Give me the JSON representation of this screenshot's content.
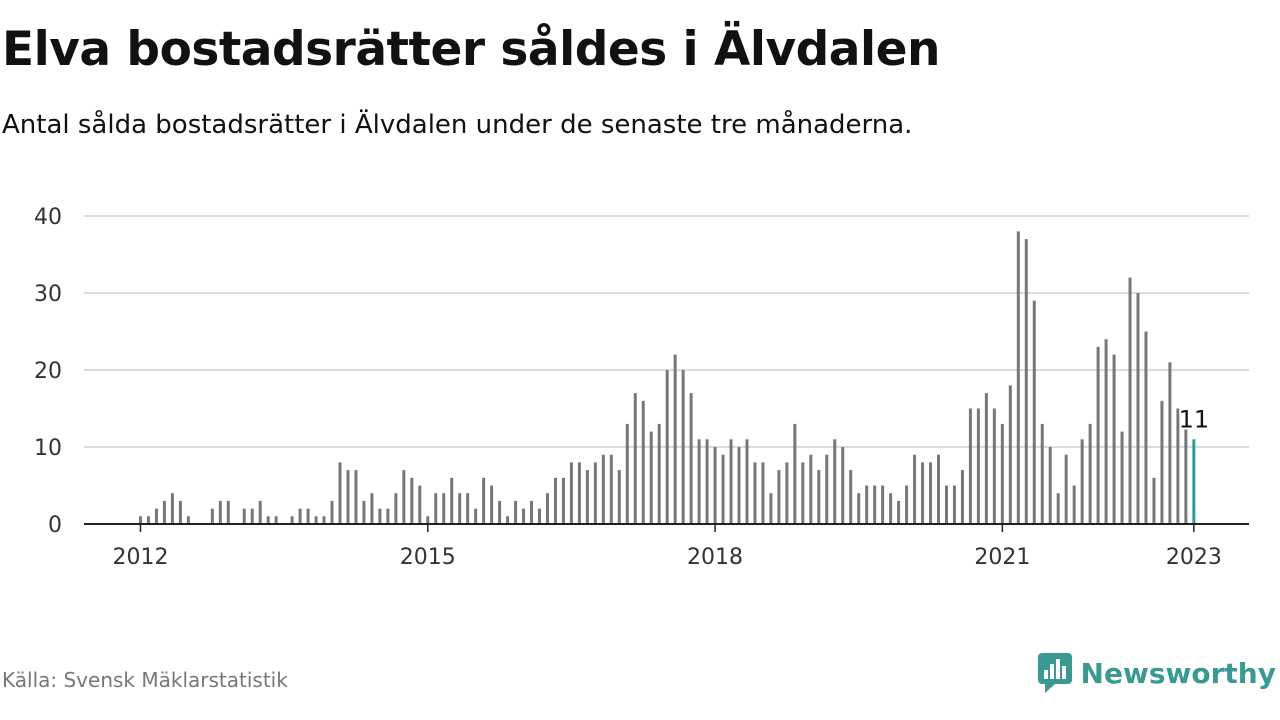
{
  "title": "Elva bostadsrätter såldes i Älvdalen",
  "subtitle": "Antal sålda bostadsrätter i Älvdalen under de senaste tre månaderna.",
  "source": "Källa: Svensk Mäklarstatistik",
  "brand": {
    "name": "Newsworthy",
    "icon": "newsworthy-logo-icon",
    "color": "#3a9a92"
  },
  "colors": {
    "bar": "#77777b",
    "highlight": "#2a9d97",
    "grid": "#dddddd",
    "axis": "#222222"
  },
  "chart_data": {
    "type": "bar",
    "title": "",
    "xlabel": "",
    "ylabel": "",
    "x_start": "2012-01",
    "x_end": "2023-01",
    "x_ticks": [
      "2012",
      "2015",
      "2018",
      "2021",
      "2023"
    ],
    "y_ticks": [
      0,
      10,
      20,
      30,
      40
    ],
    "ylim": [
      0,
      40
    ],
    "grid": true,
    "values": [
      1,
      1,
      2,
      3,
      4,
      3,
      1,
      0,
      0,
      2,
      3,
      3,
      0,
      2,
      2,
      3,
      1,
      1,
      0,
      1,
      2,
      2,
      1,
      1,
      3,
      8,
      7,
      7,
      3,
      4,
      2,
      2,
      4,
      7,
      6,
      5,
      1,
      4,
      4,
      6,
      4,
      4,
      2,
      6,
      5,
      3,
      1,
      3,
      2,
      3,
      2,
      4,
      6,
      6,
      8,
      8,
      7,
      8,
      9,
      9,
      7,
      13,
      17,
      16,
      12,
      13,
      20,
      22,
      20,
      17,
      11,
      11,
      10,
      9,
      11,
      10,
      11,
      8,
      8,
      4,
      7,
      8,
      13,
      8,
      9,
      7,
      9,
      11,
      10,
      7,
      4,
      5,
      5,
      5,
      4,
      3,
      5,
      9,
      8,
      8,
      9,
      5,
      5,
      7,
      15,
      15,
      17,
      15,
      13,
      18,
      38,
      37,
      29,
      13,
      10,
      4,
      9,
      5,
      11,
      13,
      23,
      24,
      22,
      12,
      32,
      30,
      25,
      6,
      16,
      21,
      15,
      13,
      11
    ],
    "highlight_last": true,
    "annotation": "11"
  }
}
